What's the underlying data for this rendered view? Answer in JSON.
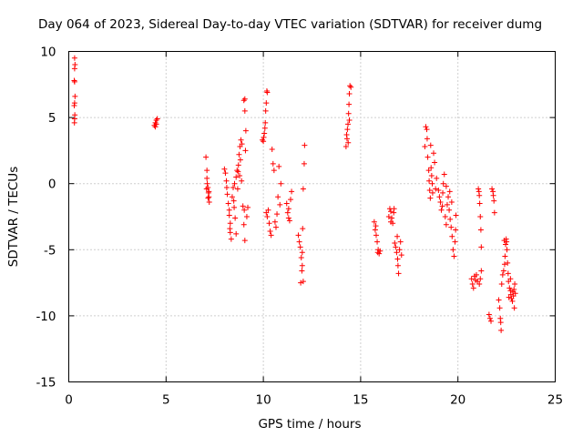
{
  "chart_data": {
    "type": "scatter",
    "title": "Day 064 of 2023, Sidereal Day-to-day VTEC variation (SDTVAR) for receiver dumg",
    "xlabel": "GPS time / hours",
    "ylabel": "SDTVAR / TECUs",
    "xlim": [
      0,
      25
    ],
    "ylim": [
      -15,
      10
    ],
    "x_ticks": [
      0,
      5,
      10,
      15,
      20,
      25
    ],
    "y_ticks": [
      -15,
      -10,
      -5,
      0,
      5,
      10
    ],
    "x_tick_labels": [
      "0",
      "5",
      "10",
      "15",
      "20",
      "25"
    ],
    "y_tick_labels": [
      "-15",
      "-10",
      "-5",
      "0",
      "5",
      "10"
    ],
    "grid": true,
    "legend": "none",
    "marker": "plus",
    "color": "#ff0000",
    "series": [
      {
        "name": "SDTVAR",
        "points": [
          [
            0.3,
            9.5
          ],
          [
            0.32,
            9.0
          ],
          [
            0.3,
            8.7
          ],
          [
            0.28,
            7.8
          ],
          [
            0.3,
            7.7
          ],
          [
            0.32,
            6.6
          ],
          [
            0.3,
            6.1
          ],
          [
            0.28,
            5.9
          ],
          [
            0.31,
            5.2
          ],
          [
            0.3,
            4.9
          ],
          [
            0.29,
            4.6
          ],
          [
            4.4,
            4.4
          ],
          [
            4.45,
            4.6
          ],
          [
            4.5,
            4.8
          ],
          [
            4.55,
            4.9
          ],
          [
            4.45,
            4.3
          ],
          [
            4.5,
            4.5
          ],
          [
            7.05,
            2.0
          ],
          [
            7.1,
            1.0
          ],
          [
            7.1,
            0.4
          ],
          [
            7.12,
            0.0
          ],
          [
            7.15,
            -0.3
          ],
          [
            7.18,
            -0.7
          ],
          [
            7.2,
            -1.0
          ],
          [
            7.22,
            -1.4
          ],
          [
            7.08,
            -0.4
          ],
          [
            7.16,
            -1.1
          ],
          [
            7.2,
            -0.6
          ],
          [
            8.0,
            1.1
          ],
          [
            8.05,
            0.8
          ],
          [
            8.1,
            0.2
          ],
          [
            8.12,
            -0.3
          ],
          [
            8.15,
            -0.8
          ],
          [
            8.2,
            -1.5
          ],
          [
            8.25,
            -2.4
          ],
          [
            8.3,
            -3.0
          ],
          [
            8.3,
            -3.7
          ],
          [
            8.35,
            -4.2
          ],
          [
            8.25,
            -2.0
          ],
          [
            8.28,
            -3.4
          ],
          [
            8.4,
            -1.0
          ],
          [
            8.45,
            -0.3
          ],
          [
            8.5,
            -1.8
          ],
          [
            8.55,
            -2.6
          ],
          [
            8.6,
            -3.8
          ],
          [
            8.6,
            0.5
          ],
          [
            8.65,
            1.0
          ],
          [
            8.7,
            0.9
          ],
          [
            8.72,
            1.4
          ],
          [
            8.75,
            2.2
          ],
          [
            8.8,
            2.8
          ],
          [
            8.85,
            3.3
          ],
          [
            8.82,
            1.8
          ],
          [
            8.78,
            0.6
          ],
          [
            8.9,
            3.0
          ],
          [
            8.95,
            -1.7
          ],
          [
            9.0,
            -3.1
          ],
          [
            9.05,
            -4.3
          ],
          [
            9.02,
            -2.0
          ],
          [
            9.0,
            6.3
          ],
          [
            9.05,
            5.5
          ],
          [
            9.05,
            6.4
          ],
          [
            9.1,
            4.0
          ],
          [
            9.08,
            2.5
          ],
          [
            9.2,
            -1.8
          ],
          [
            9.15,
            -2.5
          ],
          [
            8.88,
            0.2
          ],
          [
            8.68,
            -0.4
          ],
          [
            8.52,
            0.0
          ],
          [
            8.48,
            -1.3
          ],
          [
            9.95,
            3.3
          ],
          [
            10.0,
            3.2
          ],
          [
            10.05,
            3.8
          ],
          [
            10.1,
            4.6
          ],
          [
            10.12,
            5.5
          ],
          [
            10.15,
            6.1
          ],
          [
            10.18,
            7.0
          ],
          [
            10.2,
            6.9
          ],
          [
            10.08,
            4.2
          ],
          [
            10.02,
            3.5
          ],
          [
            10.15,
            -2.2
          ],
          [
            10.2,
            -2.5
          ],
          [
            10.25,
            -2.0
          ],
          [
            10.3,
            -3.0
          ],
          [
            10.35,
            -3.6
          ],
          [
            10.4,
            -3.9
          ],
          [
            10.45,
            2.6
          ],
          [
            10.5,
            1.5
          ],
          [
            10.55,
            1.0
          ],
          [
            10.6,
            -2.9
          ],
          [
            10.65,
            -3.3
          ],
          [
            10.7,
            -2.3
          ],
          [
            10.75,
            -1.0
          ],
          [
            10.8,
            1.3
          ],
          [
            10.85,
            -1.6
          ],
          [
            10.9,
            0.0
          ],
          [
            11.2,
            -1.5
          ],
          [
            11.25,
            -2.2
          ],
          [
            11.3,
            -2.6
          ],
          [
            11.35,
            -2.8
          ],
          [
            11.4,
            -1.2
          ],
          [
            11.45,
            -0.6
          ],
          [
            11.3,
            -1.9
          ],
          [
            11.8,
            -3.9
          ],
          [
            11.85,
            -4.4
          ],
          [
            11.9,
            -4.8
          ],
          [
            11.95,
            -5.6
          ],
          [
            12.0,
            -6.2
          ],
          [
            12.05,
            -7.4
          ],
          [
            11.92,
            -7.5
          ],
          [
            12.02,
            -3.4
          ],
          [
            12.05,
            -0.4
          ],
          [
            12.1,
            1.5
          ],
          [
            12.12,
            2.9
          ],
          [
            12.0,
            -5.2
          ],
          [
            11.98,
            -6.6
          ],
          [
            14.25,
            2.8
          ],
          [
            14.3,
            3.4
          ],
          [
            14.32,
            4.1
          ],
          [
            14.35,
            4.5
          ],
          [
            14.38,
            5.3
          ],
          [
            14.4,
            6.0
          ],
          [
            14.42,
            6.8
          ],
          [
            14.45,
            7.4
          ],
          [
            14.5,
            7.3
          ],
          [
            14.28,
            3.7
          ],
          [
            14.36,
            3.1
          ],
          [
            14.42,
            4.8
          ],
          [
            15.7,
            -2.9
          ],
          [
            15.75,
            -3.5
          ],
          [
            15.8,
            -3.9
          ],
          [
            15.85,
            -4.4
          ],
          [
            15.9,
            -5.0
          ],
          [
            15.95,
            -5.3
          ],
          [
            16.0,
            -5.1
          ],
          [
            15.88,
            -5.2
          ],
          [
            15.78,
            -3.2
          ],
          [
            16.5,
            -1.9
          ],
          [
            16.55,
            -2.1
          ],
          [
            16.6,
            -2.6
          ],
          [
            16.65,
            -3.0
          ],
          [
            16.55,
            -2.9
          ],
          [
            16.45,
            -2.5
          ],
          [
            16.7,
            -2.2
          ],
          [
            16.75,
            -4.5
          ],
          [
            16.8,
            -4.8
          ],
          [
            16.85,
            -5.2
          ],
          [
            16.9,
            -5.7
          ],
          [
            16.92,
            -6.2
          ],
          [
            16.95,
            -6.8
          ],
          [
            17.0,
            -5.0
          ],
          [
            17.05,
            -4.4
          ],
          [
            17.1,
            -5.4
          ],
          [
            16.88,
            -4.0
          ],
          [
            16.72,
            -1.9
          ],
          [
            18.3,
            2.8
          ],
          [
            18.35,
            4.3
          ],
          [
            18.4,
            4.1
          ],
          [
            18.42,
            3.4
          ],
          [
            18.45,
            2.0
          ],
          [
            18.5,
            1.0
          ],
          [
            18.52,
            0.2
          ],
          [
            18.55,
            -0.5
          ],
          [
            18.58,
            -1.1
          ],
          [
            18.62,
            1.2
          ],
          [
            18.65,
            0.6
          ],
          [
            18.68,
            0.0
          ],
          [
            18.7,
            -0.7
          ],
          [
            18.75,
            2.3
          ],
          [
            18.8,
            1.6
          ],
          [
            18.6,
            2.9
          ],
          [
            18.85,
            -0.4
          ],
          [
            18.9,
            0.4
          ],
          [
            19.0,
            -0.5
          ],
          [
            19.05,
            -1.0
          ],
          [
            19.1,
            -1.4
          ],
          [
            19.15,
            -2.0
          ],
          [
            19.2,
            -1.7
          ],
          [
            19.22,
            -0.7
          ],
          [
            19.25,
            0.0
          ],
          [
            19.3,
            0.7
          ],
          [
            19.35,
            -2.5
          ],
          [
            19.4,
            -3.1
          ],
          [
            19.45,
            -1.6
          ],
          [
            19.5,
            -1.0
          ],
          [
            19.55,
            -2.0
          ],
          [
            19.6,
            -2.7
          ],
          [
            19.65,
            -3.3
          ],
          [
            19.7,
            -4.0
          ],
          [
            19.75,
            -5.0
          ],
          [
            19.8,
            -5.5
          ],
          [
            19.85,
            -4.4
          ],
          [
            19.88,
            -3.5
          ],
          [
            19.9,
            -2.4
          ],
          [
            19.68,
            -1.4
          ],
          [
            19.58,
            -0.6
          ],
          [
            19.4,
            -0.2
          ],
          [
            20.7,
            -7.2
          ],
          [
            20.75,
            -7.6
          ],
          [
            20.8,
            -7.9
          ],
          [
            20.85,
            -7.0
          ],
          [
            20.9,
            -7.3
          ],
          [
            20.95,
            -6.9
          ],
          [
            21.0,
            -7.4
          ],
          [
            21.1,
            -7.6
          ],
          [
            21.15,
            -7.2
          ],
          [
            21.2,
            -6.6
          ],
          [
            21.05,
            -0.4
          ],
          [
            21.1,
            -0.9
          ],
          [
            21.12,
            -1.5
          ],
          [
            21.15,
            -2.5
          ],
          [
            21.18,
            -3.5
          ],
          [
            21.2,
            -4.8
          ],
          [
            21.08,
            -0.6
          ],
          [
            21.6,
            -9.9
          ],
          [
            21.65,
            -10.2
          ],
          [
            21.7,
            -10.4
          ],
          [
            21.75,
            -0.4
          ],
          [
            21.8,
            -0.6
          ],
          [
            21.85,
            -1.3
          ],
          [
            21.88,
            -2.2
          ],
          [
            21.82,
            -0.9
          ],
          [
            22.1,
            -8.8
          ],
          [
            22.15,
            -9.4
          ],
          [
            22.18,
            -10.2
          ],
          [
            22.2,
            -10.5
          ],
          [
            22.22,
            -11.1
          ],
          [
            22.25,
            -7.6
          ],
          [
            22.3,
            -6.9
          ],
          [
            22.35,
            -6.6
          ],
          [
            22.4,
            -6.1
          ],
          [
            22.42,
            -5.5
          ],
          [
            22.45,
            -4.6
          ],
          [
            22.48,
            -4.2
          ],
          [
            22.5,
            -4.4
          ],
          [
            22.52,
            -5.0
          ],
          [
            22.55,
            -6.0
          ],
          [
            22.58,
            -6.8
          ],
          [
            22.6,
            -7.4
          ],
          [
            22.65,
            -7.9
          ],
          [
            22.7,
            -8.1
          ],
          [
            22.72,
            -8.4
          ],
          [
            22.75,
            -8.7
          ],
          [
            22.8,
            -8.9
          ],
          [
            22.85,
            -8.5
          ],
          [
            22.88,
            -8.0
          ],
          [
            22.92,
            -7.6
          ],
          [
            22.95,
            -8.3
          ],
          [
            22.9,
            -9.4
          ],
          [
            22.82,
            -8.2
          ],
          [
            22.62,
            -8.6
          ],
          [
            22.38,
            -4.3
          ],
          [
            22.7,
            -7.2
          ]
        ]
      }
    ]
  }
}
